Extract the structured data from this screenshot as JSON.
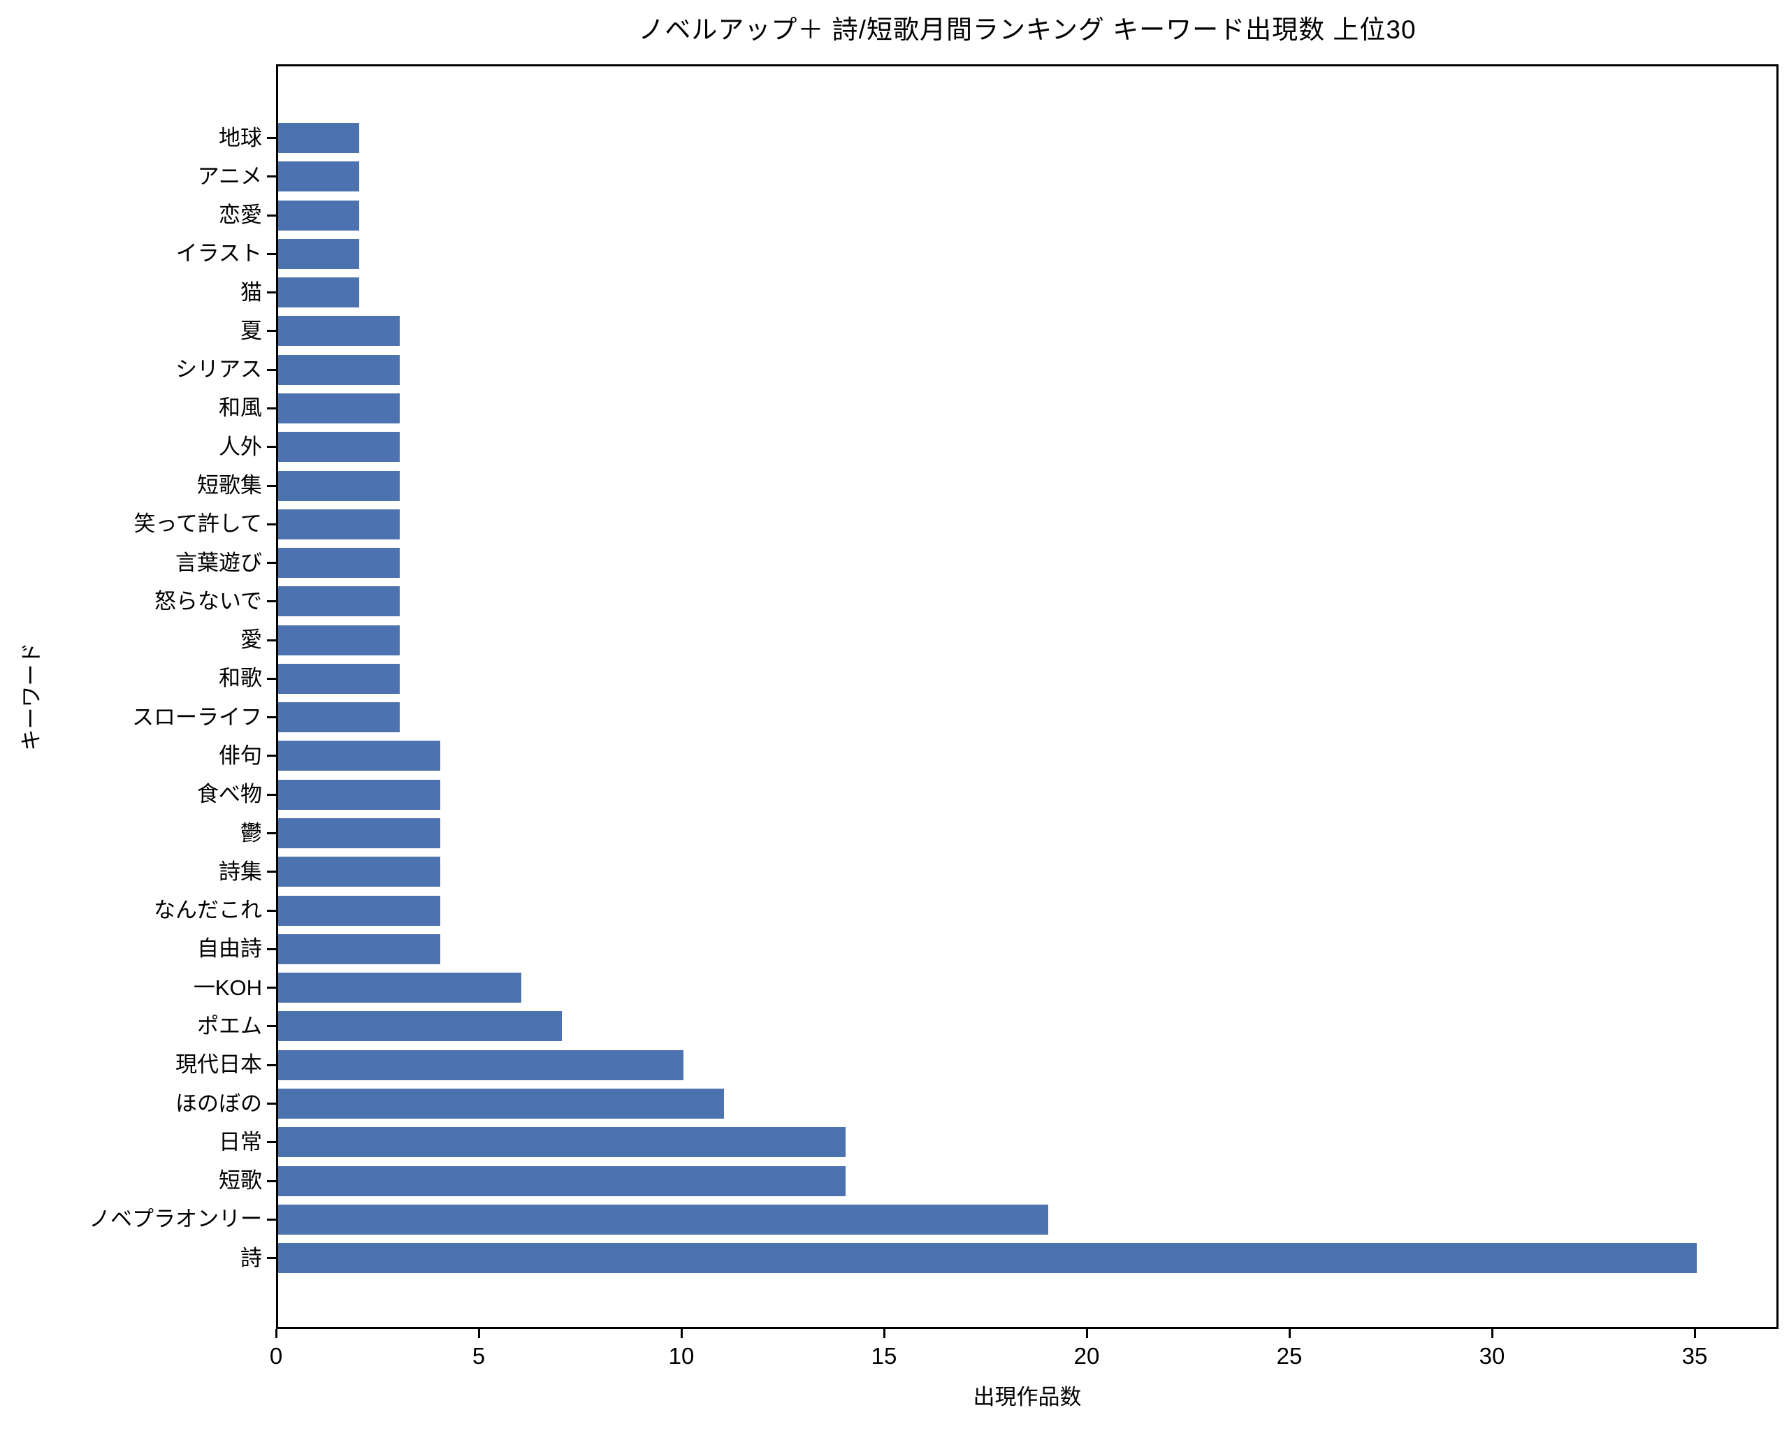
{
  "chart_data": {
    "type": "bar",
    "orientation": "horizontal",
    "title": "ノベルアップ＋ 詩/短歌月間ランキング キーワード出現数 上位30",
    "xlabel": "出現作品数",
    "ylabel": "キーワード",
    "categories": [
      "地球",
      "アニメ",
      "恋愛",
      "イラスト",
      "猫",
      "夏",
      "シリアス",
      "和風",
      "人外",
      "短歌集",
      "笑って許して",
      "言葉遊び",
      "怒らないで",
      "愛",
      "和歌",
      "スローライフ",
      "俳句",
      "食べ物",
      "鬱",
      "詩集",
      "なんだこれ",
      "自由詩",
      "一KOH",
      "ポエム",
      "現代日本",
      "ほのぼの",
      "日常",
      "短歌",
      "ノベプラオンリー",
      "詩"
    ],
    "values": [
      2,
      2,
      2,
      2,
      2,
      3,
      3,
      3,
      3,
      3,
      3,
      3,
      3,
      3,
      3,
      3,
      4,
      4,
      4,
      4,
      4,
      4,
      6,
      7,
      10,
      11,
      14,
      14,
      19,
      35
    ],
    "xticks": [
      0,
      5,
      10,
      15,
      20,
      25,
      30,
      35
    ],
    "xlim": [
      0,
      37.1
    ],
    "grid": false,
    "legend_position": "none",
    "bar_color": "#4C72B0",
    "spine_color": "#000000",
    "background_color": "#ffffff"
  }
}
